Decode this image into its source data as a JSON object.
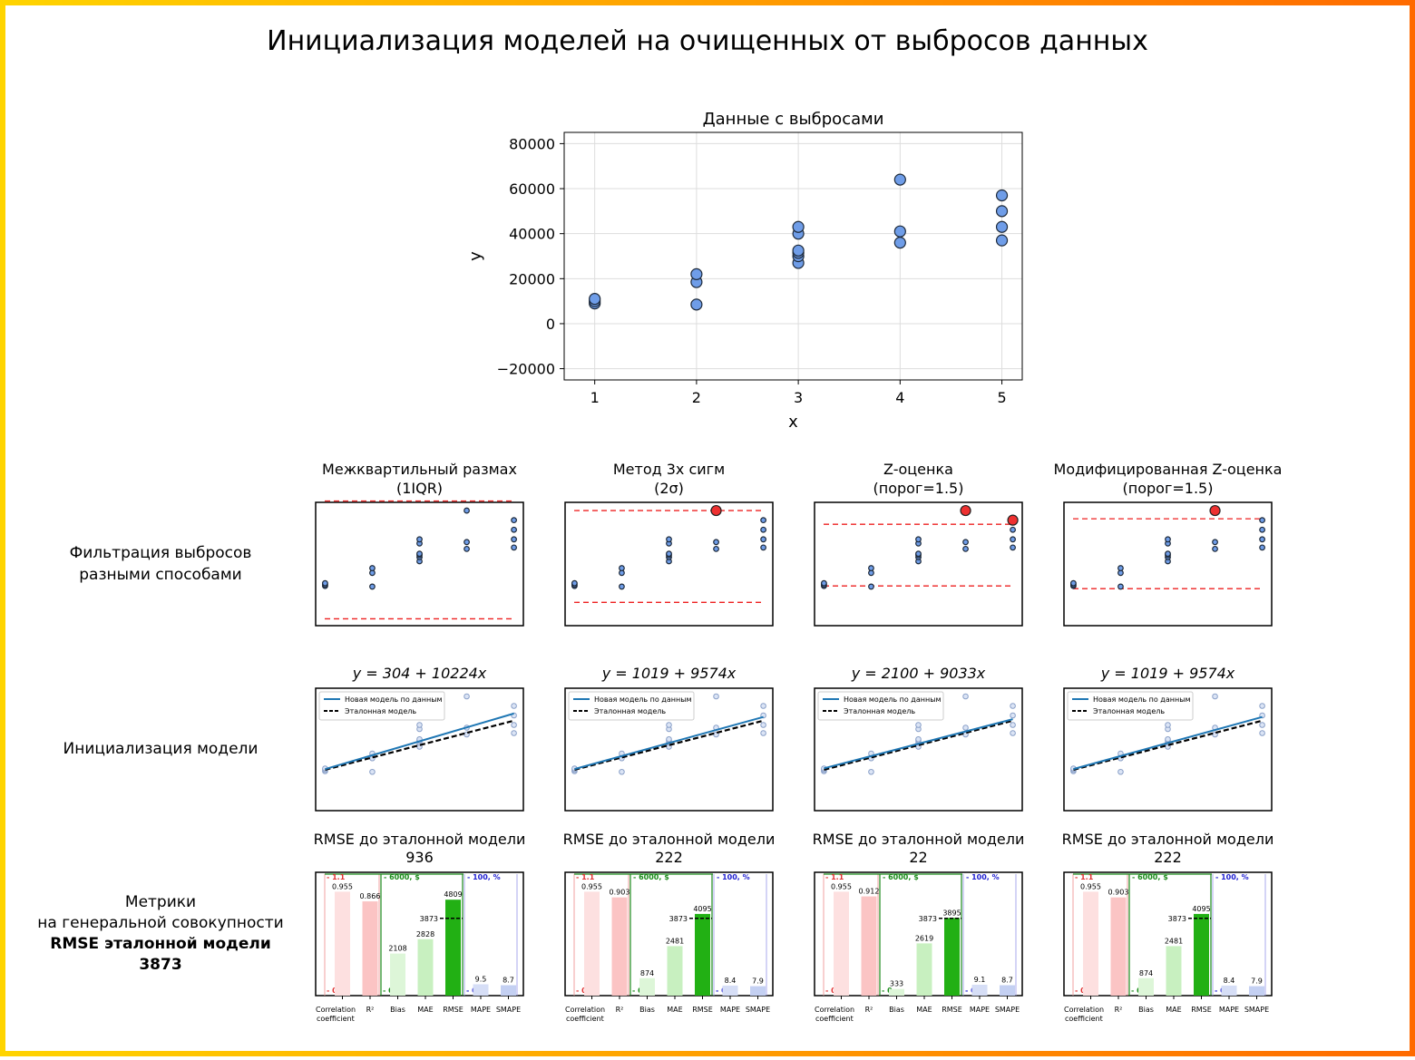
{
  "title": "Инициализация моделей на очищенных от выбросов данных",
  "colors": {
    "point": "#6f9de8",
    "outlier": "#ee3030",
    "threshold": "#ee2020",
    "new_model": "#1f77b4",
    "reference_model": "#000000",
    "corr_group": "#e03030",
    "dollar_group": "#1a8a1a",
    "pct_group": "#2020d0"
  },
  "scatter": {
    "title": "Данные с выбросами",
    "xlabel": "x",
    "ylabel": "y",
    "xticks": [
      "1",
      "2",
      "3",
      "4",
      "5"
    ],
    "yticks": [
      "80000",
      "60000",
      "40000",
      "20000",
      "0",
      "−20000"
    ],
    "ytick_values": [
      80000,
      60000,
      40000,
      20000,
      0,
      -20000
    ],
    "xlim": [
      0.7,
      5.2
    ],
    "ylim": [
      -25000,
      85000
    ]
  },
  "row_labels": {
    "filter": [
      "Фильтрация выбросов",
      "разными способами"
    ],
    "init": "Инициализация модели",
    "metrics": [
      "Метрики",
      "на генеральной совокупности"
    ],
    "metrics_bold": [
      "RMSE эталонной модели",
      "3873"
    ]
  },
  "legend": {
    "new": "Новая модель по данным",
    "ref": "Эталонная модель"
  },
  "metric_labels": {
    "corr": [
      "Correlation",
      "coefficient"
    ],
    "r2": "R²",
    "bias": "Bias",
    "mae": "MAE",
    "rmse": "RMSE",
    "mape": "MAPE",
    "smape": "SMAPE",
    "corr_top": "- 1.1",
    "dollar_top": "- 6000, $",
    "pct_top": "- 100, %",
    "zero": "- 0",
    "reference_value": "3873"
  },
  "methods": [
    {
      "title": [
        "Межквартильный размах",
        "(1IQR)"
      ],
      "formula": "y = 304 + 10224x",
      "rmse_title": "RMSE до эталонной модели",
      "rmse_value": "936"
    },
    {
      "title": [
        "Метод 3х сигм",
        "(2σ)"
      ],
      "formula": "y = 1019 + 9574x",
      "rmse_title": "RMSE до эталонной модели",
      "rmse_value": "222"
    },
    {
      "title": [
        "Z-оценка",
        "(порог=1.5)"
      ],
      "formula": "y = 2100 + 9033x",
      "rmse_title": "RMSE до эталонной модели",
      "rmse_value": "22"
    },
    {
      "title": [
        "Модифицированная Z-оценка",
        "(порог=1.5)"
      ],
      "formula": "y = 1019 + 9574x",
      "rmse_title": "RMSE до эталонной модели",
      "rmse_value": "222"
    }
  ],
  "chart_data": [
    {
      "type": "scatter",
      "title": "Данные с выбросами",
      "xlabel": "x",
      "ylabel": "y",
      "xlim": [
        0.7,
        5.2
      ],
      "ylim": [
        -25000,
        85000
      ],
      "grid": true,
      "points": [
        [
          1,
          9000
        ],
        [
          1,
          10000
        ],
        [
          1,
          11000
        ],
        [
          2,
          8500
        ],
        [
          2,
          18500
        ],
        [
          2,
          22000
        ],
        [
          3,
          27000
        ],
        [
          3,
          30000
        ],
        [
          3,
          31500
        ],
        [
          3,
          32500
        ],
        [
          3,
          40000
        ],
        [
          3,
          43000
        ],
        [
          4,
          36000
        ],
        [
          4,
          41000
        ],
        [
          4,
          64000
        ],
        [
          5,
          37000
        ],
        [
          5,
          43000
        ],
        [
          5,
          50000
        ],
        [
          5,
          57000
        ]
      ]
    },
    {
      "type": "scatter",
      "title": "Межквартильный размах (1IQR)",
      "thresholds": [
        71000,
        -15000
      ],
      "outliers": []
    },
    {
      "type": "scatter",
      "title": "Метод 3х сигм (2σ)",
      "thresholds": [
        64000,
        -3000
      ],
      "outliers": [
        [
          4,
          64000
        ]
      ]
    },
    {
      "type": "scatter",
      "title": "Z-оценка (порог=1.5)",
      "thresholds": [
        54000,
        9000
      ],
      "outliers": [
        [
          4,
          64000
        ],
        [
          5,
          57000
        ]
      ]
    },
    {
      "type": "scatter",
      "title": "Модифицированная Z-оценка (порог=1.5)",
      "thresholds": [
        58000,
        7000
      ],
      "outliers": [
        [
          4,
          64000
        ]
      ]
    },
    {
      "type": "line",
      "title": "y = 304 + 10224x",
      "series": [
        {
          "name": "Новая модель по данным",
          "intercept": 304,
          "slope": 10224
        },
        {
          "name": "Эталонная модель",
          "intercept": 1019,
          "slope": 9033
        }
      ]
    },
    {
      "type": "line",
      "title": "y = 1019 + 9574x",
      "series": [
        {
          "name": "Новая модель по данным",
          "intercept": 1019,
          "slope": 9574
        },
        {
          "name": "Эталонная модель",
          "intercept": 1019,
          "slope": 9033
        }
      ]
    },
    {
      "type": "line",
      "title": "y = 2100 + 9033x",
      "series": [
        {
          "name": "Новая модель по данным",
          "intercept": 2100,
          "slope": 9033
        },
        {
          "name": "Эталонная модель",
          "intercept": 1019,
          "slope": 9033
        }
      ]
    },
    {
      "type": "line",
      "title": "y = 1019 + 9574x",
      "series": [
        {
          "name": "Новая модель по данным",
          "intercept": 1019,
          "slope": 9574
        },
        {
          "name": "Эталонная модель",
          "intercept": 1019,
          "slope": 9033
        }
      ]
    },
    {
      "type": "bar",
      "title": "RMSE до эталонной модели 936",
      "categories": [
        "Correlation coefficient",
        "R²",
        "Bias",
        "MAE",
        "RMSE",
        "MAPE",
        "SMAPE"
      ],
      "values": [
        0.955,
        0.866,
        2108,
        2828,
        4809,
        9.5,
        8.7
      ],
      "reference": 3873
    },
    {
      "type": "bar",
      "title": "RMSE до эталонной модели 222",
      "categories": [
        "Correlation coefficient",
        "R²",
        "Bias",
        "MAE",
        "RMSE",
        "MAPE",
        "SMAPE"
      ],
      "values": [
        0.955,
        0.903,
        874,
        2481,
        4095,
        8.4,
        7.9
      ],
      "reference": 3873
    },
    {
      "type": "bar",
      "title": "RMSE до эталонной модели 22",
      "categories": [
        "Correlation coefficient",
        "R²",
        "Bias",
        "MAE",
        "RMSE",
        "MAPE",
        "SMAPE"
      ],
      "values": [
        0.955,
        0.912,
        333,
        2619,
        3895,
        9.1,
        8.7
      ],
      "reference": 3873
    },
    {
      "type": "bar",
      "title": "RMSE до эталонной модели 222",
      "categories": [
        "Correlation coefficient",
        "R²",
        "Bias",
        "MAE",
        "RMSE",
        "MAPE",
        "SMAPE"
      ],
      "values": [
        0.955,
        0.903,
        874,
        2481,
        4095,
        8.4,
        7.9
      ],
      "reference": 3873
    }
  ]
}
